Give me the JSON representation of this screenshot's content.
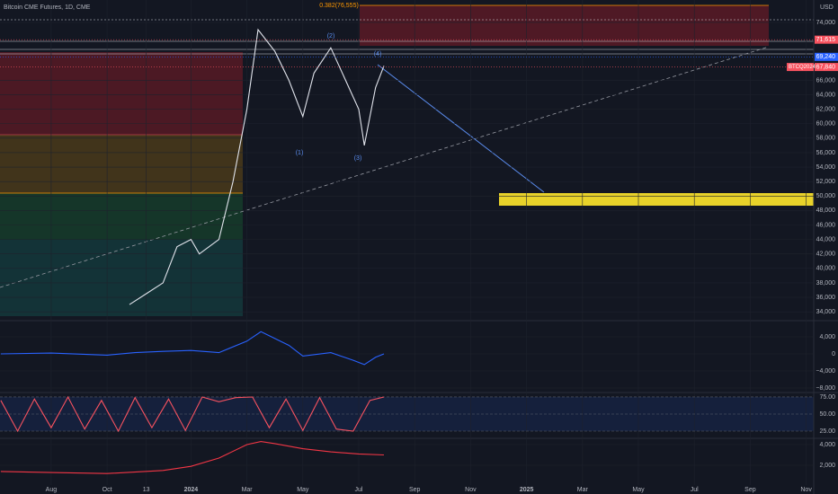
{
  "chart_data": [
    {
      "type": "line",
      "title": "Bitcoin CME Futures, 1D, CME",
      "unit_label": "USD",
      "xlim": [
        -1.83,
        27.27
      ],
      "xticks": [
        {
          "value": 0,
          "label": "Aug"
        },
        {
          "value": 2,
          "label": "Oct"
        },
        {
          "value": 3.4,
          "label": "13"
        },
        {
          "value": 5,
          "label": "2024"
        },
        {
          "value": 7,
          "label": "Mar"
        },
        {
          "value": 9,
          "label": "May"
        },
        {
          "value": 11,
          "label": "Jul"
        },
        {
          "value": 13,
          "label": "Sep"
        },
        {
          "value": 15,
          "label": "Nov"
        },
        {
          "value": 17,
          "label": "2025"
        },
        {
          "value": 19,
          "label": "Mar"
        },
        {
          "value": 21,
          "label": "May"
        },
        {
          "value": 23,
          "label": "Jul"
        },
        {
          "value": 25,
          "label": "Sep"
        },
        {
          "value": 27,
          "label": "Nov"
        }
      ],
      "ylim": [
        33400,
        77100
      ],
      "yticks": [
        {
          "value": 34000,
          "label": "34,000"
        },
        {
          "value": 36000,
          "label": "36,000"
        },
        {
          "value": 38000,
          "label": "38,000"
        },
        {
          "value": 40000,
          "label": "40,000"
        },
        {
          "value": 42000,
          "label": "42,000"
        },
        {
          "value": 44000,
          "label": "44,000"
        },
        {
          "value": 46000,
          "label": "46,000"
        },
        {
          "value": 48000,
          "label": "48,000"
        },
        {
          "value": 50000,
          "label": "50,000"
        },
        {
          "value": 52000,
          "label": "52,000"
        },
        {
          "value": 54000,
          "label": "54,000"
        },
        {
          "value": 56000,
          "label": "56,000"
        },
        {
          "value": 58000,
          "label": "58,000"
        },
        {
          "value": 60000,
          "label": "60,000"
        },
        {
          "value": 62000,
          "label": "62,000"
        },
        {
          "value": 64000,
          "label": "64,000"
        },
        {
          "value": 66000,
          "label": "66,000"
        },
        {
          "value": 74000,
          "label": "74,000"
        }
      ],
      "price_labels": [
        {
          "value": 71615,
          "label": "71,615",
          "color": "#f7525f"
        },
        {
          "value": 69240,
          "label": "69,240",
          "color": "#2962ff"
        },
        {
          "value": 67840,
          "label": "67,840",
          "name": "BTCQ2024",
          "color": "#f7525f"
        }
      ],
      "x": [
        2.8,
        3.4,
        4,
        4.5,
        5,
        5.3,
        6,
        6.5,
        7,
        7.4,
        8,
        8.5,
        9,
        9.4,
        10,
        11,
        11.2,
        11.6,
        11.9
      ],
      "series": [
        {
          "color": "#e0e3eb",
          "values": [
            35000,
            36500,
            38000,
            43000,
            44000,
            42000,
            44000,
            52000,
            62000,
            73000,
            70000,
            66000,
            61000,
            67000,
            70500,
            62000,
            57000,
            65000,
            68000
          ]
        }
      ],
      "annotations": [
        "0.382(76,555)",
        "(2)",
        "(4)",
        "(1)",
        "(3)"
      ]
    },
    {
      "type": "line",
      "ylim": [
        -8630,
        7160
      ],
      "yticks": [
        {
          "value": 4000,
          "label": "4,000"
        },
        0,
        {
          "value": -4000,
          "label": "−4,000"
        },
        {
          "value": -8000,
          "label": "−8,000"
        }
      ],
      "x": [
        -1.8,
        0,
        2,
        3,
        4,
        5,
        6,
        7,
        7.5,
        8.5,
        9,
        10,
        10.8,
        11.2,
        11.6,
        11.9
      ],
      "series": [
        {
          "color": "#2962ff",
          "values": [
            0,
            200,
            -300,
            300,
            600,
            800,
            300,
            3000,
            5200,
            2000,
            -500,
            300,
            -1500,
            -2500,
            -800,
            0
          ]
        }
      ]
    },
    {
      "type": "line",
      "ylim": [
        15.8,
        77.6
      ],
      "yticks": [
        {
          "value": 75,
          "label": "75.00"
        },
        {
          "value": 50,
          "label": "50.00"
        },
        {
          "value": 25,
          "label": "25.00"
        }
      ],
      "x": [
        -1.8,
        -1.2,
        -0.6,
        0,
        0.6,
        1.2,
        1.8,
        2.4,
        3,
        3.6,
        4.2,
        4.8,
        5.4,
        6,
        6.6,
        7.2,
        7.8,
        8.4,
        9,
        9.6,
        10.2,
        10.8,
        11.4,
        11.9
      ],
      "series": [
        {
          "color": "#f7525f",
          "values": [
            70,
            25,
            72,
            30,
            75,
            28,
            70,
            25,
            74,
            30,
            72,
            26,
            75,
            68,
            74,
            75,
            30,
            72,
            26,
            74,
            28,
            25,
            70,
            75
          ]
        }
      ]
    },
    {
      "type": "line",
      "ylim": [
        87,
        4435
      ],
      "yticks": [
        {
          "value": 4000,
          "label": "4,000"
        },
        {
          "value": 2000,
          "label": "2,000"
        }
      ],
      "x": [
        -1.8,
        0,
        2,
        4,
        5,
        6,
        7,
        7.5,
        8,
        9,
        10,
        11,
        11.9
      ],
      "series": [
        {
          "color": "#f23645",
          "values": [
            1400,
            1300,
            1200,
            1500,
            1900,
            2700,
            4000,
            4300,
            4100,
            3600,
            3300,
            3100,
            3000
          ]
        }
      ]
    }
  ]
}
